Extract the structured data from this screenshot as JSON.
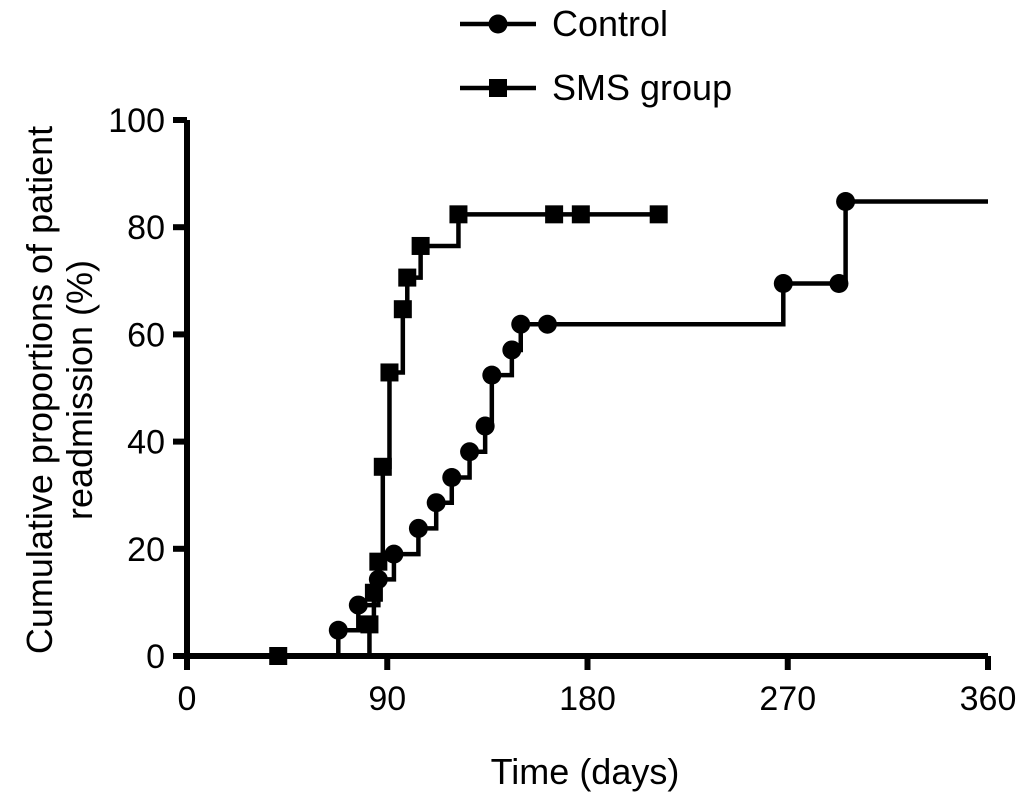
{
  "chart_data": {
    "type": "line",
    "step": true,
    "xlabel": "Time (days)",
    "ylabel": "Cumulative proportions of patient readmission (%)",
    "xlim": [
      0,
      360
    ],
    "ylim": [
      0,
      100
    ],
    "xticks": [
      0,
      90,
      180,
      270,
      360
    ],
    "yticks": [
      0,
      20,
      40,
      60,
      80,
      100
    ],
    "grid": false,
    "legend": "top",
    "series": [
      {
        "name": "Control",
        "marker": "circle",
        "points": [
          {
            "x": 0,
            "y": 0
          },
          {
            "x": 68,
            "y": 4.8
          },
          {
            "x": 77,
            "y": 9.5
          },
          {
            "x": 86,
            "y": 14.3
          },
          {
            "x": 93,
            "y": 19.0
          },
          {
            "x": 104,
            "y": 23.8
          },
          {
            "x": 112,
            "y": 28.6
          },
          {
            "x": 119,
            "y": 33.3
          },
          {
            "x": 127,
            "y": 38.1
          },
          {
            "x": 134,
            "y": 42.9
          },
          {
            "x": 137,
            "y": 52.4
          },
          {
            "x": 146,
            "y": 57.1
          },
          {
            "x": 150,
            "y": 61.9
          },
          {
            "x": 162,
            "y": 61.9
          },
          {
            "x": 268,
            "y": 69.5
          },
          {
            "x": 293,
            "y": 69.5
          },
          {
            "x": 296,
            "y": 84.8
          },
          {
            "x": 360,
            "y": 84.8
          }
        ]
      },
      {
        "name": "SMS group",
        "marker": "square",
        "points": [
          {
            "x": 0,
            "y": 0
          },
          {
            "x": 41,
            "y": 0
          },
          {
            "x": 82,
            "y": 5.9
          },
          {
            "x": 84,
            "y": 11.8
          },
          {
            "x": 86,
            "y": 17.6
          },
          {
            "x": 88,
            "y": 35.3
          },
          {
            "x": 91,
            "y": 52.9
          },
          {
            "x": 97,
            "y": 64.7
          },
          {
            "x": 99,
            "y": 70.6
          },
          {
            "x": 105,
            "y": 76.5
          },
          {
            "x": 122,
            "y": 82.4
          },
          {
            "x": 165,
            "y": 82.4
          },
          {
            "x": 177,
            "y": 82.4
          },
          {
            "x": 212,
            "y": 82.4
          }
        ]
      }
    ]
  }
}
